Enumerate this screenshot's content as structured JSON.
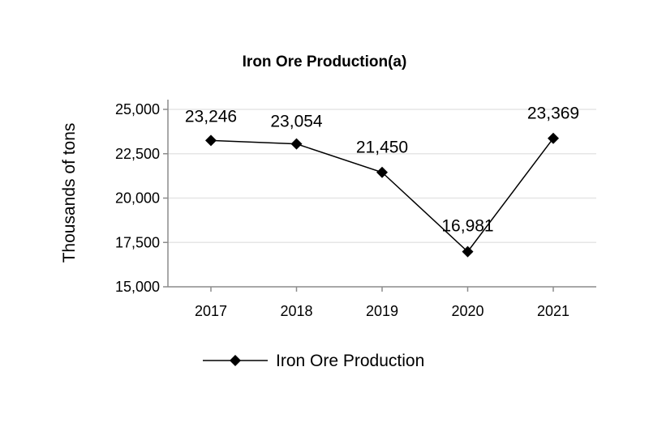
{
  "chart_data": {
    "type": "line",
    "title": "Iron Ore Production(a)",
    "ylabel": "Thousands of tons",
    "xlabel": "",
    "categories": [
      "2017",
      "2018",
      "2019",
      "2020",
      "2021"
    ],
    "series": [
      {
        "name": "Iron Ore Production",
        "values": [
          23246,
          23054,
          21450,
          16981,
          23369
        ],
        "data_labels": [
          "23,246",
          "23,054",
          "21,450",
          "16,981",
          "23,369"
        ],
        "color": "#000000",
        "marker": "diamond"
      }
    ],
    "ylim": [
      15000,
      25000
    ],
    "yticks": [
      "15,000",
      "17,500",
      "20,000",
      "22,500",
      "25,000"
    ],
    "ytick_values": [
      15000,
      17500,
      20000,
      22500,
      25000
    ],
    "grid": true,
    "legend": "bottom-center"
  }
}
